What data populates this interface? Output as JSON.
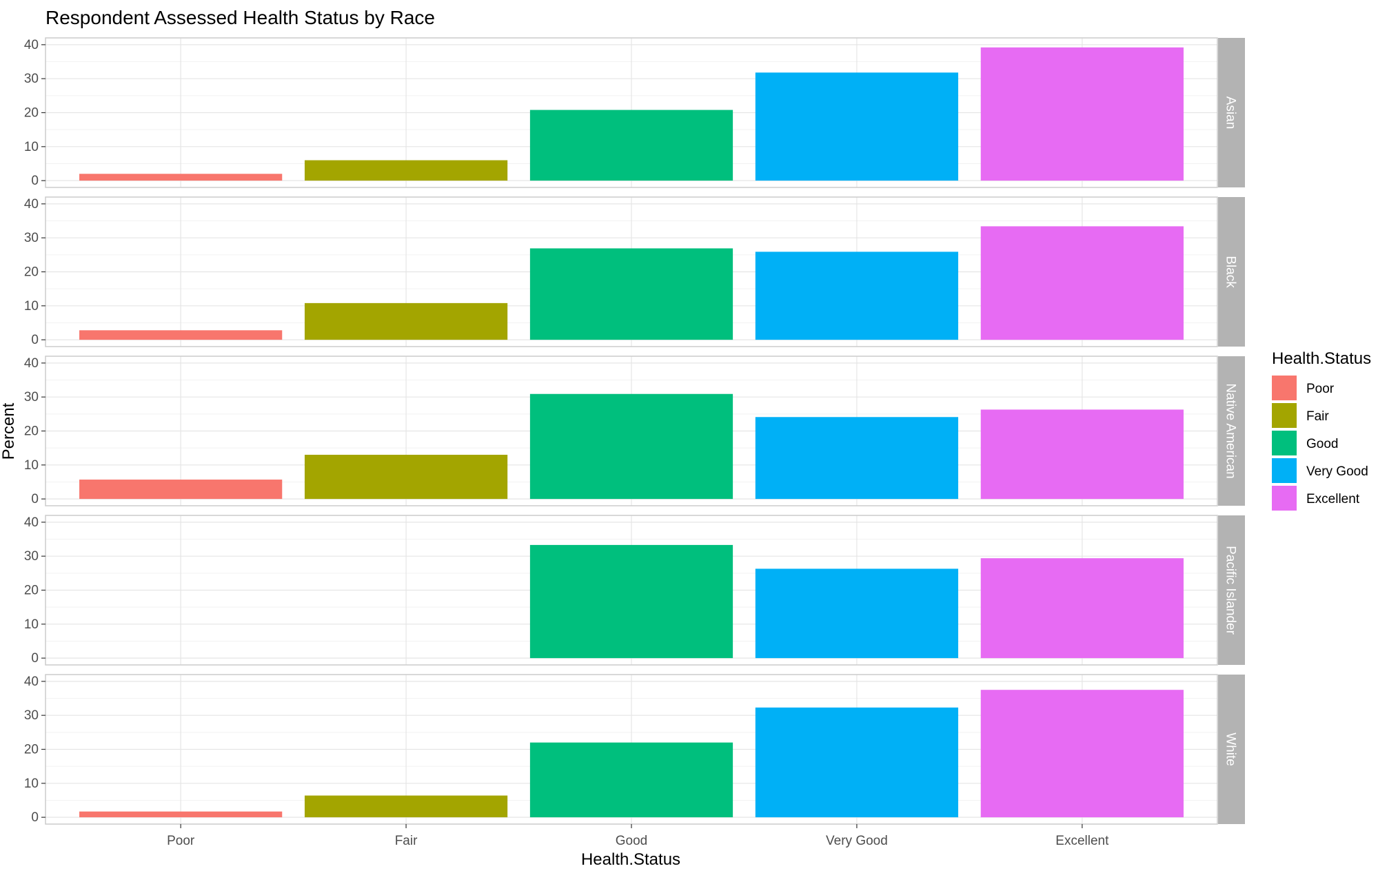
{
  "chart_data": {
    "type": "bar",
    "title": "Respondent Assessed Health Status by Race",
    "xlabel": "Health.Status",
    "ylabel": "Percent",
    "categories": [
      "Poor",
      "Fair",
      "Good",
      "Very Good",
      "Excellent"
    ],
    "ylim": [
      0,
      40
    ],
    "yticks": [
      0,
      10,
      20,
      30,
      40
    ],
    "grid": true,
    "legend": {
      "title": "Health.Status",
      "position": "right",
      "items": [
        {
          "label": "Poor",
          "color": "#F8766D"
        },
        {
          "label": "Fair",
          "color": "#A3A500"
        },
        {
          "label": "Good",
          "color": "#00BF7D"
        },
        {
          "label": "Very Good",
          "color": "#00B0F6"
        },
        {
          "label": "Excellent",
          "color": "#E76BF3"
        }
      ]
    },
    "facets": [
      {
        "name": "Asian",
        "values": [
          2.0,
          6.0,
          20.8,
          31.8,
          39.2
        ]
      },
      {
        "name": "Black",
        "values": [
          2.8,
          10.8,
          26.9,
          25.9,
          33.4
        ]
      },
      {
        "name": "Native American",
        "values": [
          5.7,
          13.0,
          30.9,
          24.1,
          26.3
        ]
      },
      {
        "name": "Pacific Islander",
        "values": [
          0,
          0,
          33.3,
          26.3,
          29.4
        ]
      },
      {
        "name": "White",
        "values": [
          1.7,
          6.4,
          22.0,
          32.3,
          37.5
        ]
      }
    ]
  }
}
